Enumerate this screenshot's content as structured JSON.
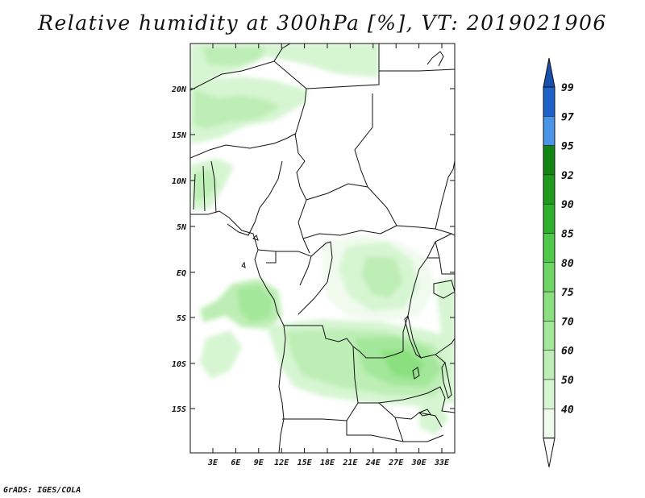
{
  "title": "Relative humidity at 300hPa [%], VT: 2019021906",
  "credit": "GrADS: IGES/COLA",
  "colors": {
    "c40": "#f0fbee",
    "c50": "#d6f5d1",
    "c60": "#bdeeb5",
    "c70": "#a3e79a",
    "c75": "#8ae07f",
    "c80": "#6fd666",
    "c85": "#4fc94a",
    "c90": "#2fb02c",
    "c92": "#1e9a1c",
    "c95": "#118511",
    "c97": "#4a95e8",
    "c99": "#1f62cc",
    "c100": "#1a4fae",
    "coast": "#111111"
  },
  "map": {
    "lat_ticks": [
      "20N",
      "15N",
      "10N",
      "5N",
      "EQ",
      "5S",
      "10S",
      "15S"
    ],
    "lon_ticks": [
      "3E",
      "6E",
      "9E",
      "12E",
      "15E",
      "18E",
      "21E",
      "24E",
      "27E",
      "30E",
      "33E"
    ]
  },
  "colorbar": {
    "levels": [
      "99",
      "97",
      "95",
      "92",
      "90",
      "85",
      "80",
      "75",
      "70",
      "60",
      "50",
      "40"
    ],
    "colors": [
      "#1a4fae",
      "#1f62cc",
      "#4a95e8",
      "#118511",
      "#1e9a1c",
      "#2fb02c",
      "#4fc94a",
      "#6fd666",
      "#8ae07f",
      "#a3e79a",
      "#bdeeb5",
      "#d6f5d1",
      "#f0fbee",
      "#ffffff"
    ]
  }
}
